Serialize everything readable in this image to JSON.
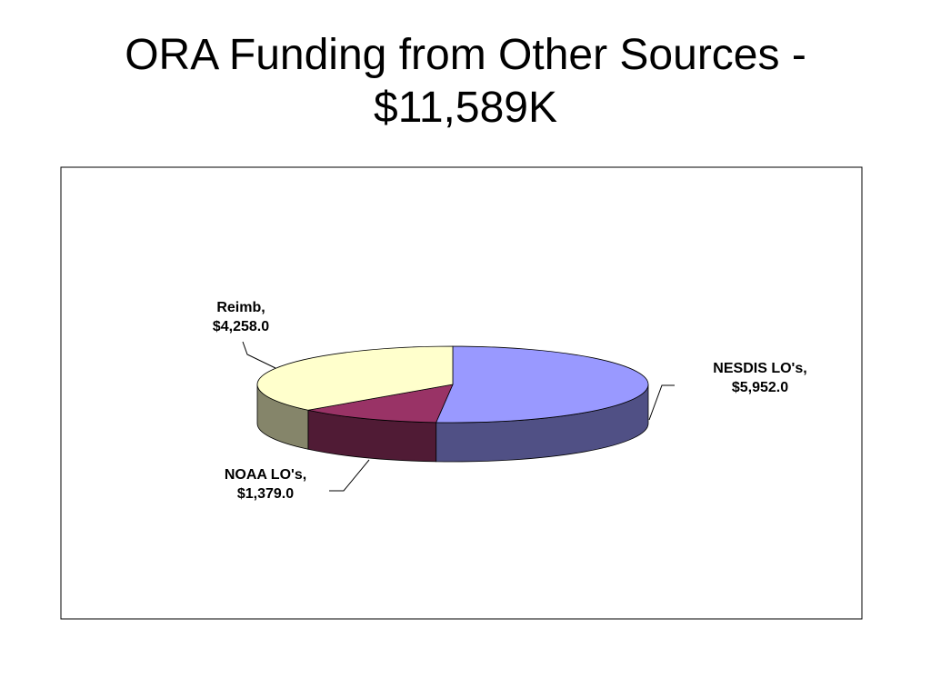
{
  "chart_data": {
    "type": "pie3d",
    "title": "ORA Funding from Other Sources - $11,589K",
    "categories": [
      "NESDIS LO's,",
      "NOAA LO's,",
      "Reimb,"
    ],
    "values": [
      5952.0,
      1379.0,
      4258.0
    ],
    "value_labels": [
      "$5,952.0",
      "$1,379.0",
      "$4,258.0"
    ],
    "colors": [
      "#9999ff",
      "#993366",
      "#ffffcc"
    ]
  }
}
